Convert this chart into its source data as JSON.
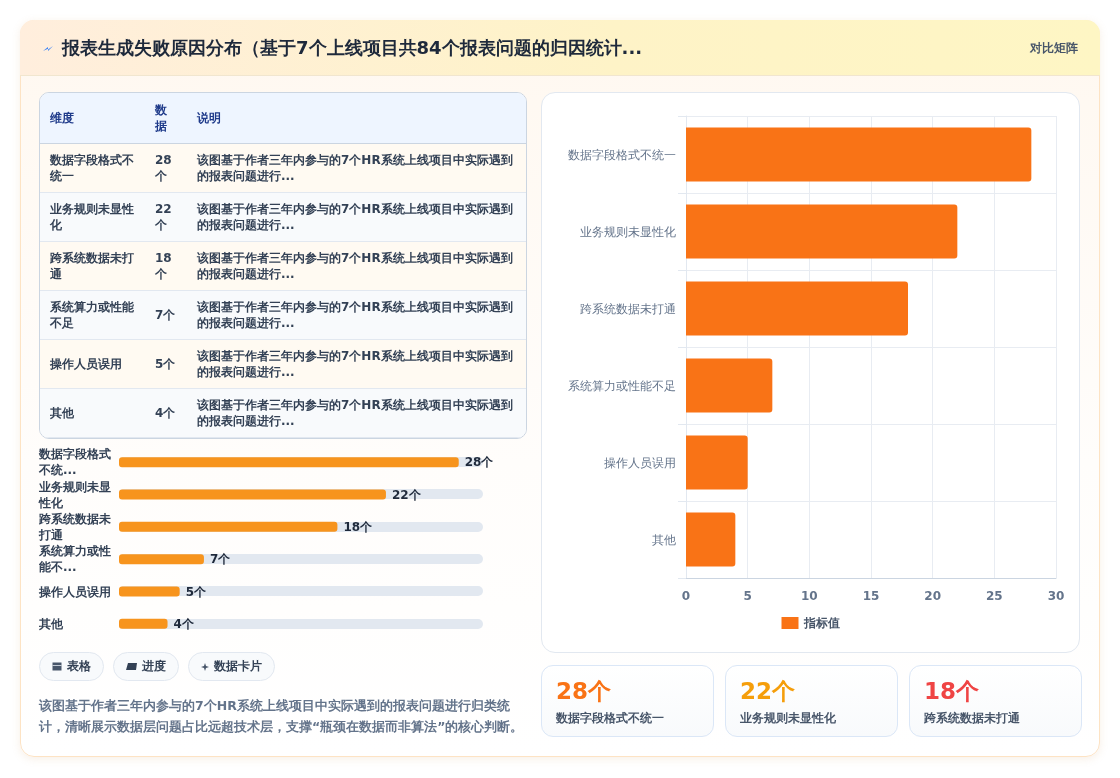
{
  "chart_data": [
    {
      "type": "other",
      "title": "报表生成失败原因分布（基于7个上线项目共84个报表问题的归因统计...",
      "annotations": [
        "对比矩阵"
      ]
    },
    {
      "type": "other",
      "categories": [
        "数据字段格式不统一",
        "业务规则未显性化",
        "跨系统数据未打通",
        "系统算力或性能不足",
        "操作人员误用",
        "其他"
      ],
      "value_labels": [
        "28个",
        "22个",
        "18个",
        "7个",
        "5个",
        "4个"
      ],
      "annotations": [
        "维度",
        "数据",
        "说明",
        "该图基于作者三年内参与的7个HR系统上线项目中实际遇到的报表问题进行...",
        "该图基于作者三年内参与的7个HR系统上线项目中实际遇到的报表问题进行...",
        "该图基于作者三年内参与的7个HR系统上线项目中实际遇到的报表问题进行...",
        "该图基于作者三年内参与的7个HR系统上线项目中实际遇到的报表问题进行...",
        "该图基于作者三年内参与的7个HR系统上线项目中实际遇到的报表问题进行...",
        "该图基于作者三年内参与的7个HR系统上线项目中实际遇到的报表问题进行..."
      ]
    },
    {
      "type": "bar",
      "orientation": "horizontal",
      "categories": [
        "数据字段格式不统一",
        "业务规则未显性化",
        "跨系统数据未打通",
        "系统算力或性能不足",
        "操作人员误用",
        "其他"
      ],
      "series": [
        {
          "name": "指标值",
          "color": "#f97316",
          "values": [
            28,
            22,
            18,
            7,
            5,
            4
          ]
        }
      ],
      "xlim": [
        0,
        30
      ],
      "xticks": [
        0,
        5,
        10,
        15,
        20,
        25,
        30
      ],
      "grid": true,
      "legend": "bottom"
    },
    {
      "type": "bar",
      "orientation": "horizontal",
      "categories": [
        "数据字段格式不统...",
        "业务规则未显性化",
        "跨系统数据未打通",
        "系统算力或性能不...",
        "操作人员误用",
        "其他"
      ],
      "values": [
        28,
        22,
        18,
        7,
        5,
        4
      ],
      "value_labels": [
        "28个",
        "22个",
        "18个",
        "7个",
        "5个",
        "4个"
      ],
      "color": "#f7941d",
      "tick_labels": "y",
      "annotations": [
        "表格",
        "进度",
        "数据卡片",
        "该图基于作者三年内参与的7个HR系统上线项目中实际遇到的报表问题进行归类统计，清晰展示数据层问题占比远超技术层，支撑“瓶颈在数据而非算法”的核心判断。"
      ]
    },
    {
      "type": "other",
      "categories": [
        "数据字段格式不统一",
        "业务规则未显性化",
        "跨系统数据未打通"
      ],
      "value_labels": [
        "28个",
        "22个",
        "18个"
      ]
    }
  ]
}
